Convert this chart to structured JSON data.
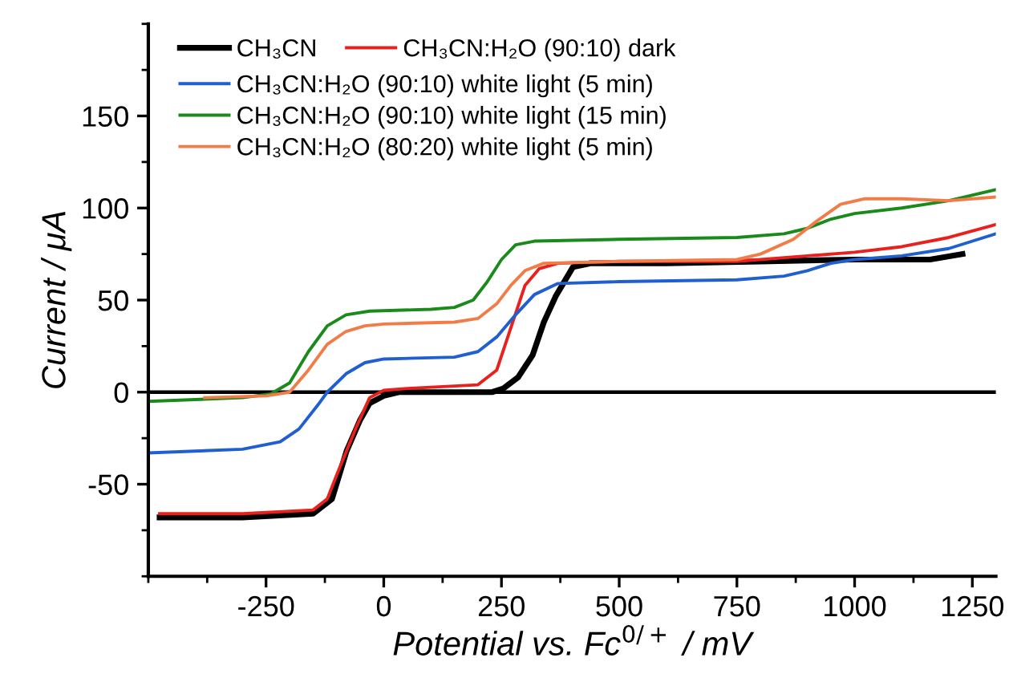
{
  "chart_data": {
    "type": "line",
    "xlabel": "Potential vs. Fc$^{0/+}$ / mV",
    "ylabel": "Current / μA",
    "xlim": [
      -500,
      1300
    ],
    "xticks": [
      -250,
      0,
      250,
      500,
      750,
      1000,
      1250
    ],
    "ylim": [
      -100,
      200
    ],
    "yticks": [
      -50,
      0,
      50,
      100,
      150
    ],
    "grid": false,
    "legend": "top left",
    "marker": "none",
    "line_style": "solid",
    "ref_lines": [
      {
        "axis": "y",
        "value": 0,
        "color": "#000000"
      }
    ],
    "series": [
      {
        "name": "CH₃CN",
        "color": "#000000",
        "x": [
          -476,
          -300,
          -150,
          -110,
          -79,
          -50,
          -30,
          0,
          32,
          150,
          230,
          254,
          285,
          316,
          340,
          365,
          402,
          439,
          600,
          800,
          1000,
          1160,
          1229
        ],
        "values": [
          -68,
          -68,
          -66,
          -58,
          -32,
          -15,
          -6,
          -2,
          0,
          0,
          0,
          2,
          8,
          20,
          38,
          52,
          68,
          70,
          70,
          71,
          72,
          72,
          75
        ]
      },
      {
        "name": "CH₃CN:H₂O (90:10) dark",
        "color": "#e8201e",
        "x": [
          -476,
          -300,
          -150,
          -120,
          -100,
          -60,
          -30,
          0,
          50,
          200,
          240,
          270,
          300,
          330,
          370,
          500,
          750,
          900,
          1000,
          1100,
          1200,
          1300
        ],
        "values": [
          -66,
          -66,
          -64,
          -58,
          -45,
          -20,
          -3,
          1,
          2,
          4,
          12,
          35,
          58,
          67,
          70,
          71,
          71,
          74,
          76,
          79,
          84,
          91
        ]
      },
      {
        "name": "CH₃CN:H₂O (90:10) white light (5 min)",
        "color": "#1f5fcf",
        "x": [
          -500,
          -300,
          -220,
          -180,
          -140,
          -120,
          -80,
          -40,
          0,
          150,
          200,
          240,
          280,
          320,
          370,
          500,
          750,
          850,
          900,
          950,
          1000,
          1100,
          1200,
          1300
        ],
        "values": [
          -33,
          -31,
          -27,
          -20,
          -7,
          0,
          10,
          16,
          18,
          19,
          22,
          30,
          42,
          53,
          59,
          60,
          61,
          63,
          66,
          70,
          72,
          74,
          78,
          86
        ]
      },
      {
        "name": "CH₃CN:H₂O (90:10) white light (15 min)",
        "color": "#1a8a1a",
        "x": [
          -500,
          -300,
          -240,
          -200,
          -160,
          -120,
          -80,
          -30,
          100,
          150,
          190,
          220,
          250,
          280,
          320,
          500,
          750,
          850,
          900,
          950,
          1000,
          1100,
          1200,
          1300
        ],
        "values": [
          -5,
          -3,
          -1,
          5,
          22,
          36,
          42,
          44,
          45,
          46,
          50,
          60,
          72,
          80,
          82,
          83,
          84,
          86,
          89,
          94,
          97,
          100,
          104,
          110
        ]
      },
      {
        "name": "CH₃CN:H₂O (80:20) white light (5 min)",
        "color": "#f27c48",
        "x": [
          -380,
          -250,
          -200,
          -160,
          -120,
          -80,
          -40,
          0,
          150,
          200,
          240,
          270,
          300,
          340,
          500,
          750,
          800,
          870,
          920,
          970,
          1020,
          1100,
          1200,
          1300
        ],
        "values": [
          -3,
          -2,
          0,
          12,
          26,
          33,
          36,
          37,
          38,
          40,
          48,
          58,
          66,
          70,
          71,
          72,
          75,
          83,
          93,
          102,
          105,
          105,
          104,
          106
        ]
      }
    ]
  }
}
